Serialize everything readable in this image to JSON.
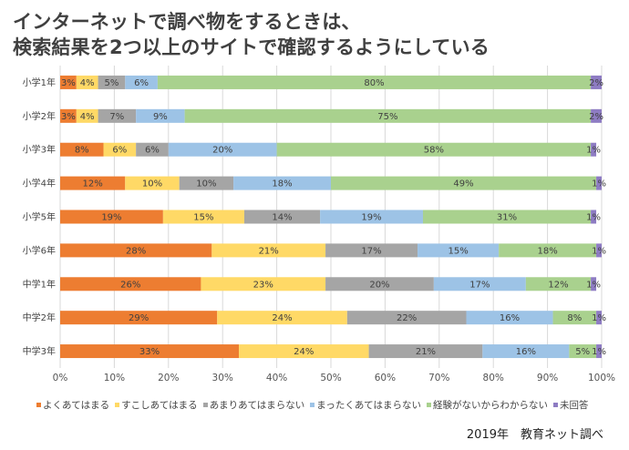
{
  "title_line1": "インターネットで調べ物をするときは、",
  "title_line2": "検索結果を2つ以上のサイトで確認するようにしている",
  "source": "2019年　教育ネット調べ",
  "chart_data": {
    "type": "bar",
    "orientation": "horizontal",
    "stacked": true,
    "percent": true,
    "categories": [
      "小学1年",
      "小学2年",
      "小学3年",
      "小学4年",
      "小学5年",
      "小学6年",
      "中学1年",
      "中学2年",
      "中学3年"
    ],
    "series": [
      {
        "name": "よくあてはまる",
        "color": "#ed7d31",
        "values": [
          3,
          3,
          8,
          12,
          19,
          28,
          26,
          29,
          33
        ],
        "labels": [
          "3%",
          "3%",
          "8%",
          "12%",
          "19%",
          "28%",
          "26%",
          "29%",
          "33%"
        ]
      },
      {
        "name": "すこしあてはまる",
        "color": "#ffd966",
        "values": [
          4,
          4,
          6,
          10,
          15,
          21,
          23,
          24,
          24
        ],
        "labels": [
          "4%",
          "4%",
          "6%",
          "10%",
          "15%",
          "21%",
          "23%",
          "24%",
          "24%"
        ]
      },
      {
        "name": "あまりあてはまらない",
        "color": "#a5a5a5",
        "values": [
          5,
          7,
          6,
          10,
          14,
          17,
          20,
          22,
          21
        ],
        "labels": [
          "5%",
          "7%",
          "6%",
          "10%",
          "14%",
          "17%",
          "20%",
          "22%",
          "21%"
        ]
      },
      {
        "name": "まったくあてはまらない",
        "color": "#9dc3e6",
        "values": [
          6,
          9,
          20,
          18,
          19,
          15,
          17,
          16,
          16
        ],
        "labels": [
          "6%",
          "9%",
          "20%",
          "18%",
          "19%",
          "15%",
          "17%",
          "16%",
          "16%"
        ]
      },
      {
        "name": "経験がないからわからない",
        "color": "#a9d18e",
        "values": [
          80,
          75,
          58,
          49,
          31,
          18,
          12,
          8,
          5
        ],
        "labels": [
          "80%",
          "75%",
          "58%",
          "49%",
          "31%",
          "18%",
          "12%",
          "8%",
          "5%"
        ]
      },
      {
        "name": "未回答",
        "color": "#8e7cc3",
        "values": [
          2,
          2,
          1,
          1,
          1,
          1,
          1,
          1,
          1
        ],
        "labels": [
          "2%",
          "2%",
          "1%",
          "1%",
          "1%",
          "1%",
          "1%",
          "1%",
          "1%"
        ]
      }
    ],
    "xlim": [
      0,
      100
    ],
    "xticks": [
      "0%",
      "10%",
      "20%",
      "30%",
      "40%",
      "50%",
      "60%",
      "70%",
      "80%",
      "90%",
      "100%"
    ],
    "legend_position": "bottom",
    "grid": true
  }
}
